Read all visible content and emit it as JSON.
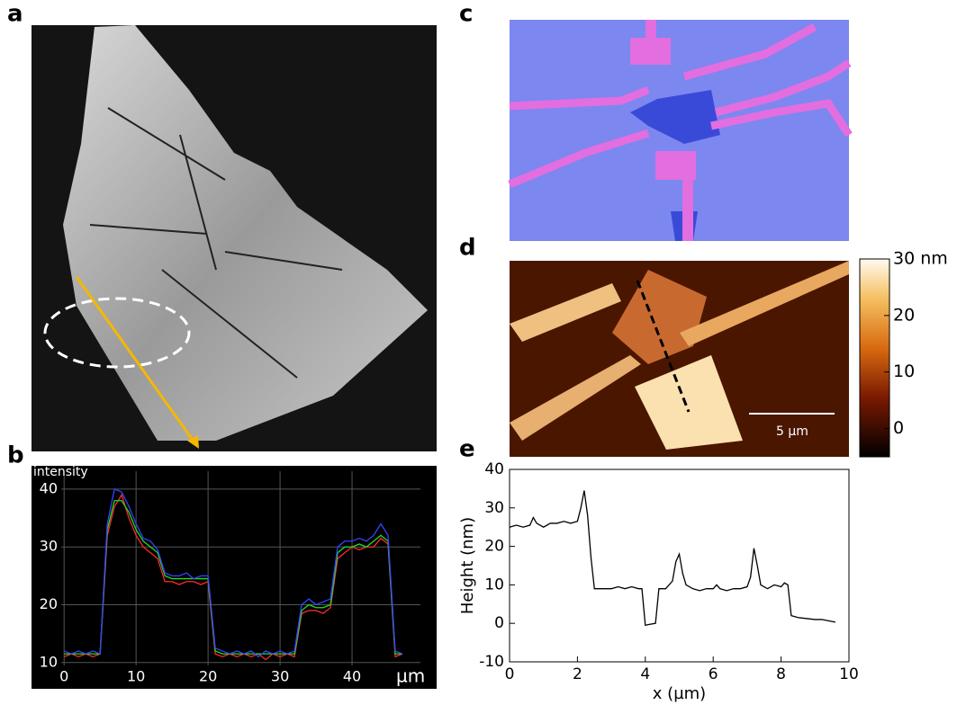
{
  "panel_labels": [
    "a",
    "b",
    "c",
    "d",
    "e"
  ],
  "panel_d": {
    "scale_bar": "5 µm"
  },
  "colorbar": {
    "ylim": [
      -5,
      30
    ],
    "yticks": [
      {
        "value": 30,
        "label": "30 nm"
      },
      20,
      10,
      0
    ]
  },
  "chart_data": [
    {
      "type": "line",
      "y_label": "intensity",
      "x_unit": "µm",
      "x": [
        0,
        1,
        2,
        3,
        4,
        5,
        6,
        7,
        8,
        9,
        10,
        11,
        12,
        13,
        14,
        15,
        16,
        17,
        18,
        19,
        20,
        21,
        22,
        23,
        24,
        25,
        26,
        27,
        28,
        29,
        30,
        31,
        32,
        33,
        34,
        35,
        36,
        37,
        38,
        39,
        40,
        41,
        42,
        43,
        44,
        45,
        46,
        47
      ],
      "series": [
        {
          "color": "#ff2a2a",
          "values": [
            11,
            11.5,
            11,
            11.5,
            11,
            11.5,
            32,
            37,
            39,
            35,
            32,
            30,
            29,
            28,
            24,
            24,
            23.5,
            24,
            24,
            23.5,
            24,
            11.5,
            11,
            11.5,
            11,
            11.5,
            11,
            11.5,
            10.5,
            11.5,
            11,
            11.5,
            11,
            18.5,
            19,
            19,
            18.5,
            19.5,
            28,
            29,
            30,
            29.5,
            30,
            30,
            31.5,
            30.5,
            11,
            11.5
          ]
        },
        {
          "color": "#22dd22",
          "values": [
            11.5,
            11.5,
            11.5,
            11.5,
            11.5,
            11.5,
            33,
            38,
            38,
            36,
            33,
            31,
            30,
            29,
            25,
            24.5,
            24.5,
            24.5,
            24.5,
            24.5,
            24.5,
            12,
            11.5,
            11.5,
            11.5,
            11.5,
            11.5,
            11.5,
            11.5,
            11.5,
            11.5,
            11.5,
            11.5,
            19,
            20,
            19.5,
            19.5,
            20,
            29,
            30,
            30,
            30.5,
            30,
            31,
            32,
            31,
            11.5,
            11.5
          ]
        },
        {
          "color": "#3344ff",
          "values": [
            12,
            11.5,
            12,
            11.5,
            12,
            11.5,
            34,
            40,
            39.5,
            37,
            34,
            31.5,
            31,
            29.5,
            25.5,
            25,
            25,
            25.5,
            24.5,
            25,
            25,
            12.5,
            12,
            11.5,
            12,
            11.5,
            12,
            11,
            12,
            11.5,
            12,
            11.5,
            12,
            20,
            21,
            20,
            20.5,
            21,
            30,
            31,
            31,
            31.5,
            31,
            32,
            34,
            32,
            12,
            11.5
          ]
        }
      ],
      "xlim": [
        -0.4,
        49.5
      ],
      "ylim": [
        9.5,
        43.1
      ],
      "xticks": [
        0,
        10,
        20,
        30,
        40
      ],
      "yticks": [
        10,
        20,
        30,
        40
      ],
      "grid": true
    },
    {
      "type": "line",
      "x_label": "x (µm)",
      "y_label": "Height (nm)",
      "x": [
        0,
        0.2,
        0.4,
        0.6,
        0.7,
        0.8,
        1.0,
        1.2,
        1.4,
        1.6,
        1.8,
        2.0,
        2.1,
        2.2,
        2.3,
        2.4,
        2.5,
        2.8,
        3.0,
        3.2,
        3.4,
        3.6,
        3.8,
        3.9,
        4.0,
        4.1,
        4.3,
        4.4,
        4.6,
        4.8,
        4.9,
        5.0,
        5.1,
        5.2,
        5.4,
        5.6,
        5.8,
        6.0,
        6.1,
        6.2,
        6.4,
        6.6,
        6.8,
        7.0,
        7.1,
        7.2,
        7.3,
        7.4,
        7.6,
        7.8,
        8.0,
        8.1,
        8.2,
        8.3,
        8.5,
        9.0,
        9.2,
        9.6
      ],
      "series": [
        {
          "color": "#000000",
          "values": [
            25,
            25.5,
            25,
            25.5,
            27.5,
            26,
            25,
            26,
            26,
            26.5,
            26,
            26.5,
            30,
            34.5,
            28,
            17,
            9,
            9,
            9,
            9.5,
            9,
            9.5,
            9,
            9,
            -0.5,
            -0.3,
            0,
            9,
            9,
            11,
            16,
            18,
            13,
            10,
            9,
            8.5,
            9,
            9,
            10,
            9,
            8.5,
            9,
            9,
            9.5,
            12,
            19.5,
            15,
            10,
            9,
            10,
            9.5,
            10.5,
            10,
            2,
            1.5,
            1,
            1,
            0.3
          ]
        }
      ],
      "xlim": [
        0,
        10
      ],
      "ylim": [
        -10,
        40
      ],
      "xticks": [
        0,
        2,
        4,
        6,
        8,
        10
      ],
      "yticks": [
        -10,
        0,
        10,
        20,
        30,
        40
      ],
      "grid": false
    }
  ]
}
